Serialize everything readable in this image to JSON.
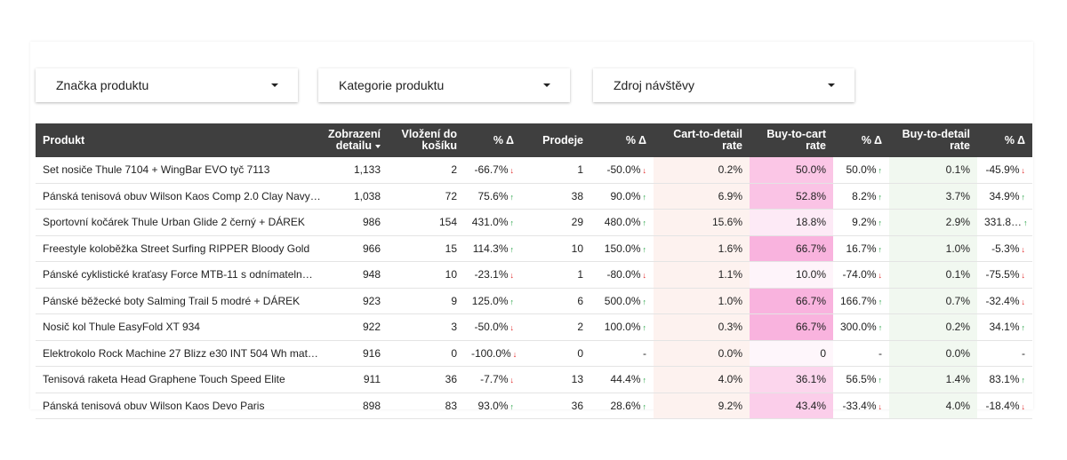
{
  "filters": [
    {
      "label": "Značka produktu",
      "icon": "caret-down-icon"
    },
    {
      "label": "Kategorie produktu",
      "icon": "caret-down-icon"
    },
    {
      "label": "Zdroj návštěvy",
      "icon": "caret-down-icon"
    }
  ],
  "table": {
    "columns": [
      "Produkt",
      "Zobrazení detailu",
      "Vložení do košíku",
      "% Δ",
      "Prodeje",
      "% Δ",
      "Cart-to-detail rate",
      "Buy-to-cart rate",
      "% Δ",
      "Buy-to-detail rate",
      "% Δ"
    ],
    "sorted_column": "Zobrazení detailu",
    "sort_direction": "descending",
    "rows": [
      {
        "product": "Set nosiče Thule 7104 + WingBar EVO tyč 7113",
        "views": "1,133",
        "cart": "2",
        "cart_delta": "-66.7%",
        "cart_dir": "down",
        "sales": "1",
        "sales_delta": "-50.0%",
        "sales_dir": "down",
        "c2d": "0.2%",
        "c2d_val": 0.2,
        "b2c": "50.0%",
        "b2c_val": 50.0,
        "b2c_delta": "50.0%",
        "b2c_dir": "up",
        "b2d": "0.1%",
        "b2d_val": 0.1,
        "b2d_delta": "-45.9%",
        "b2d_dir": "down"
      },
      {
        "product": "Pánská tenisová obuv Wilson Kaos Comp 2.0 Clay Navy…",
        "views": "1,038",
        "cart": "72",
        "cart_delta": "75.6%",
        "cart_dir": "up",
        "sales": "38",
        "sales_delta": "90.0%",
        "sales_dir": "up",
        "c2d": "6.9%",
        "c2d_val": 6.9,
        "b2c": "52.8%",
        "b2c_val": 52.8,
        "b2c_delta": "8.2%",
        "b2c_dir": "up",
        "b2d": "3.7%",
        "b2d_val": 3.7,
        "b2d_delta": "34.9%",
        "b2d_dir": "up"
      },
      {
        "product": "Sportovní kočárek Thule Urban Glide 2 černý + DÁREK",
        "views": "986",
        "cart": "154",
        "cart_delta": "431.0%",
        "cart_dir": "up",
        "sales": "29",
        "sales_delta": "480.0%",
        "sales_dir": "up",
        "c2d": "15.6%",
        "c2d_val": 15.6,
        "b2c": "18.8%",
        "b2c_val": 18.8,
        "b2c_delta": "9.2%",
        "b2c_dir": "up",
        "b2d": "2.9%",
        "b2d_val": 2.9,
        "b2d_delta": "331.8…",
        "b2d_dir": "up"
      },
      {
        "product": "Freestyle koloběžka Street Surfing RIPPER Bloody Gold",
        "views": "966",
        "cart": "15",
        "cart_delta": "114.3%",
        "cart_dir": "up",
        "sales": "10",
        "sales_delta": "150.0%",
        "sales_dir": "up",
        "c2d": "1.6%",
        "c2d_val": 1.6,
        "b2c": "66.7%",
        "b2c_val": 66.7,
        "b2c_delta": "16.7%",
        "b2c_dir": "up",
        "b2d": "1.0%",
        "b2d_val": 1.0,
        "b2d_delta": "-5.3%",
        "b2d_dir": "down"
      },
      {
        "product": "Pánské cyklistické kraťasy Force MTB-11 s odnímateln…",
        "views": "948",
        "cart": "10",
        "cart_delta": "-23.1%",
        "cart_dir": "down",
        "sales": "1",
        "sales_delta": "-80.0%",
        "sales_dir": "down",
        "c2d": "1.1%",
        "c2d_val": 1.1,
        "b2c": "10.0%",
        "b2c_val": 10.0,
        "b2c_delta": "-74.0%",
        "b2c_dir": "down",
        "b2d": "0.1%",
        "b2d_val": 0.1,
        "b2d_delta": "-75.5%",
        "b2d_dir": "down"
      },
      {
        "product": "Pánské běžecké boty Salming Trail 5 modré + DÁREK",
        "views": "923",
        "cart": "9",
        "cart_delta": "125.0%",
        "cart_dir": "up",
        "sales": "6",
        "sales_delta": "500.0%",
        "sales_dir": "up",
        "c2d": "1.0%",
        "c2d_val": 1.0,
        "b2c": "66.7%",
        "b2c_val": 66.7,
        "b2c_delta": "166.7%",
        "b2c_dir": "up",
        "b2d": "0.7%",
        "b2d_val": 0.7,
        "b2d_delta": "-32.4%",
        "b2d_dir": "down"
      },
      {
        "product": "Nosič kol Thule EasyFold XT 934",
        "views": "922",
        "cart": "3",
        "cart_delta": "-50.0%",
        "cart_dir": "down",
        "sales": "2",
        "sales_delta": "100.0%",
        "sales_dir": "up",
        "c2d": "0.3%",
        "c2d_val": 0.3,
        "b2c": "66.7%",
        "b2c_val": 66.7,
        "b2c_delta": "300.0%",
        "b2c_dir": "up",
        "b2d": "0.2%",
        "b2d_val": 0.2,
        "b2d_delta": "34.1%",
        "b2d_dir": "up"
      },
      {
        "product": "Elektrokolo Rock Machine 27 Blizz e30 INT 504 Wh mat…",
        "views": "916",
        "cart": "0",
        "cart_delta": "-100.0%",
        "cart_dir": "down",
        "sales": "0",
        "sales_delta": "-",
        "sales_dir": "none",
        "c2d": "0.0%",
        "c2d_val": 0.0,
        "b2c": "0",
        "b2c_val": 0,
        "b2c_delta": "-",
        "b2c_dir": "none",
        "b2d": "0.0%",
        "b2d_val": 0.0,
        "b2d_delta": "-",
        "b2d_dir": "none"
      },
      {
        "product": "Tenisová raketa Head Graphene Touch Speed Elite",
        "views": "911",
        "cart": "36",
        "cart_delta": "-7.7%",
        "cart_dir": "down",
        "sales": "13",
        "sales_delta": "44.4%",
        "sales_dir": "up",
        "c2d": "4.0%",
        "c2d_val": 4.0,
        "b2c": "36.1%",
        "b2c_val": 36.1,
        "b2c_delta": "56.5%",
        "b2c_dir": "up",
        "b2d": "1.4%",
        "b2d_val": 1.4,
        "b2d_delta": "83.1%",
        "b2d_dir": "up"
      },
      {
        "product": "Pánská tenisová obuv Wilson Kaos Devo Paris",
        "views": "898",
        "cart": "83",
        "cart_delta": "93.0%",
        "cart_dir": "up",
        "sales": "36",
        "sales_delta": "28.6%",
        "sales_dir": "up",
        "c2d": "9.2%",
        "c2d_val": 9.2,
        "b2c": "43.4%",
        "b2c_val": 43.4,
        "b2c_delta": "-33.4%",
        "b2c_dir": "down",
        "b2d": "4.0%",
        "b2d_val": 4.0,
        "b2d_delta": "-18.4%",
        "b2d_dir": "down"
      }
    ]
  },
  "colors": {
    "header_bg": "#3f3f3f",
    "up_arrow": "#1e9e3e",
    "down_arrow": "#e02020",
    "c2d_bg": "#fdf2ef",
    "b2d_bg": "#f1f8f0",
    "b2c_heat_max": "#f9b3de"
  }
}
